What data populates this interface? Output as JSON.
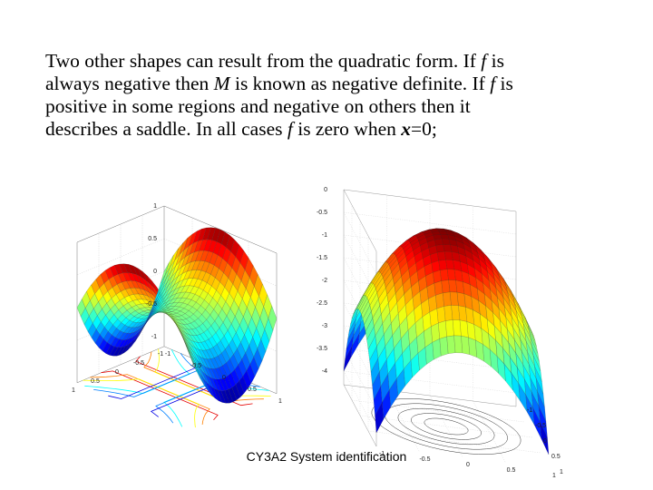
{
  "slide": {
    "paragraph": {
      "l1a": "Two other shapes can result from the quadratic form. If ",
      "l1f": "f",
      "l1b": " is",
      "l2a": "always negative then ",
      "l2m": "M",
      "l2b": " is known as negative definite. If ",
      "l2f": "f",
      "l2c": " is",
      "l3": "positive in some regions and negative on others then it",
      "l4a": "describes a saddle.  In all cases  ",
      "l4f": "f",
      "l4b": "  is zero when ",
      "l4x": "x",
      "l4c": "=0;"
    },
    "footer": "CY3A2  System identification"
  },
  "plots": {
    "saddle": {
      "y_ticks": [
        "1",
        "0.5",
        "0",
        "-0.5",
        "-1"
      ],
      "x_ticks": [
        "1",
        "0.5",
        "0",
        "-0.5",
        "-1"
      ],
      "y2_ticks": [
        "1",
        "0.5",
        "0",
        "-0.5",
        "-1"
      ]
    },
    "negative_definite": {
      "z_ticks": [
        "0",
        "-0.5",
        "-1",
        "-1.5",
        "-2",
        "-2.5",
        "-3",
        "-3.5",
        "-4"
      ],
      "x_ticks": [
        "1",
        "0.5",
        "0",
        "-0.5",
        "-1"
      ],
      "y_ticks": [
        "1",
        "0.5",
        "0",
        "-0.5",
        "-1"
      ]
    }
  },
  "colormap": "jet"
}
